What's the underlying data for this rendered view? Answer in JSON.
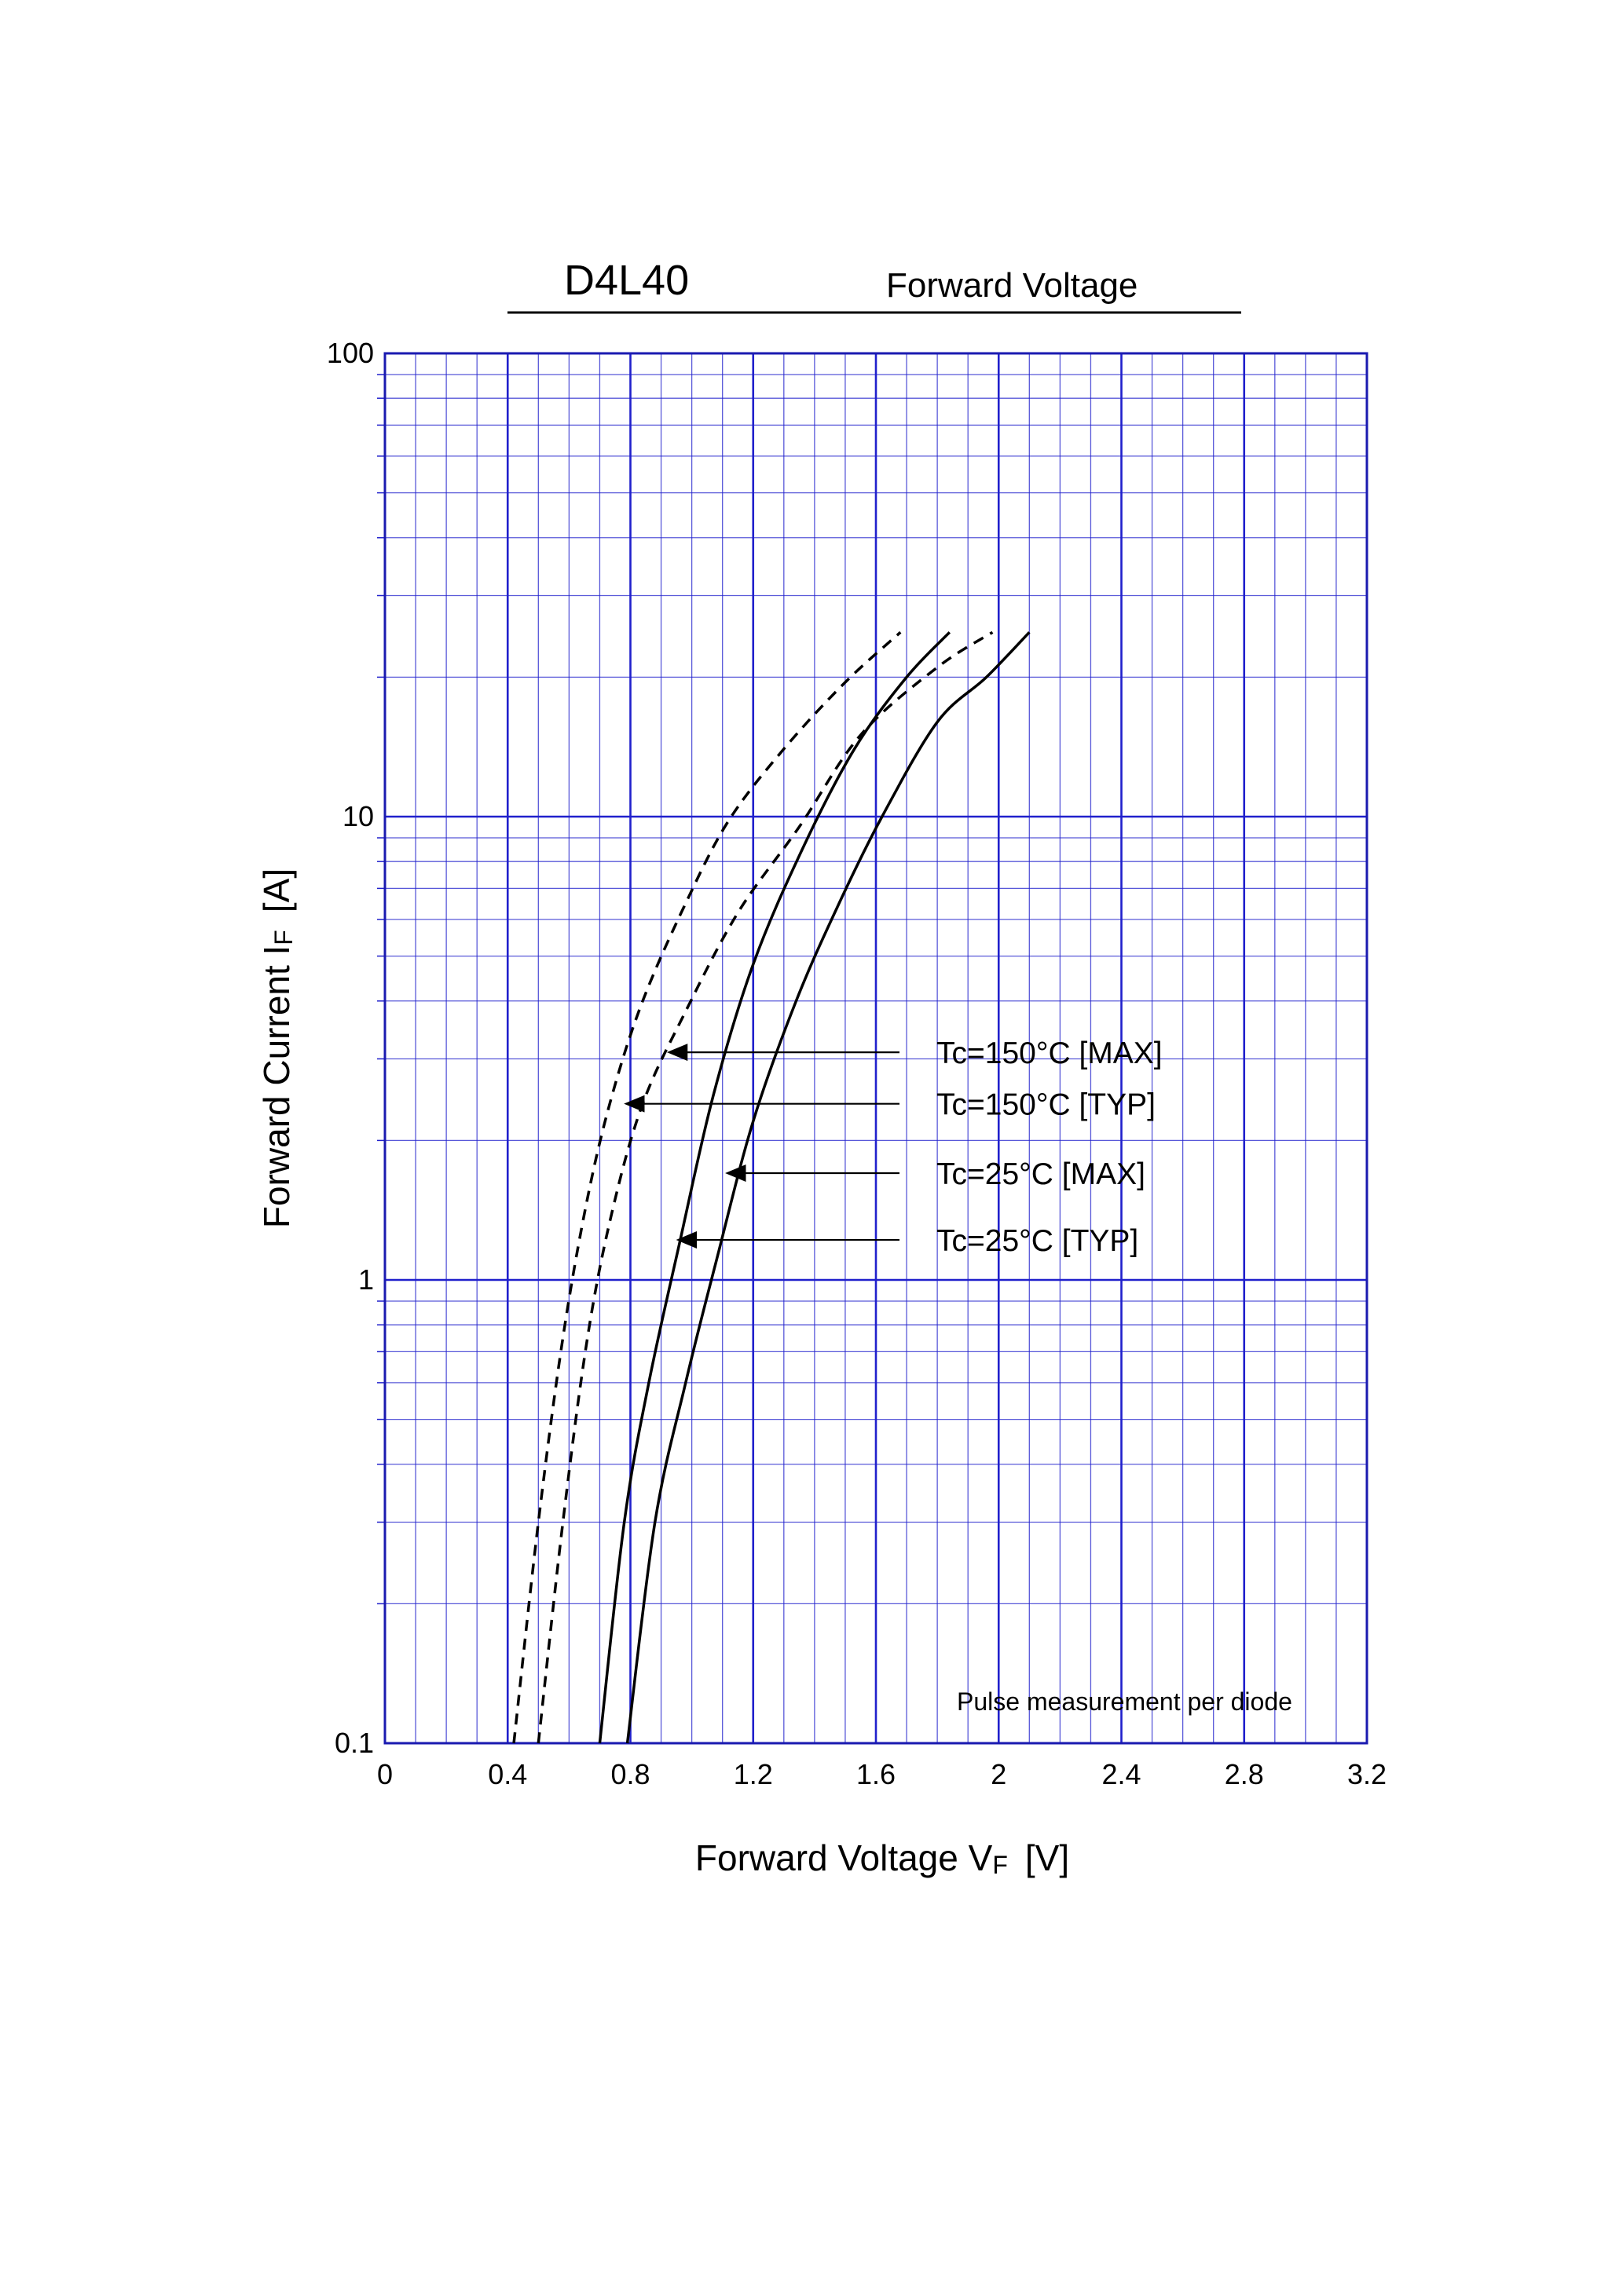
{
  "header": {
    "part_number": "D4L40",
    "title": "Forward  Voltage"
  },
  "chart_data": {
    "type": "line",
    "xlabel": "Forward Voltage  V",
    "xlabel_sub": "F",
    "xlabel_unit": "[V]",
    "ylabel": "Forward Current  I",
    "ylabel_sub": "F",
    "ylabel_unit": "[A]",
    "xlim": [
      0,
      3.2
    ],
    "ylim": [
      0.1,
      100
    ],
    "yscale": "log",
    "x_ticks": [
      "0",
      "0.4",
      "0.8",
      "1.2",
      "1.6",
      "2",
      "2.4",
      "2.8",
      "3.2"
    ],
    "y_ticks": [
      "0.1",
      "1",
      "10",
      "100"
    ],
    "grid": true,
    "note": "Pulse  measurement  per  diode",
    "series": [
      {
        "name": "Tc=150°C [MAX]",
        "style": "dashed",
        "x": [
          0.42,
          0.5,
          0.58,
          0.66,
          0.74,
          0.84,
          0.98,
          1.12,
          1.3,
          1.5,
          1.68
        ],
        "y": [
          0.1,
          0.3,
          0.75,
          1.5,
          2.5,
          4.0,
          6.5,
          9.8,
          14.0,
          19.5,
          25.0
        ]
      },
      {
        "name": "Tc=150°C [TYP]",
        "style": "dashed",
        "x": [
          0.5,
          0.58,
          0.66,
          0.74,
          0.84,
          0.98,
          1.15,
          1.35,
          1.55,
          1.8,
          1.98
        ],
        "y": [
          0.1,
          0.3,
          0.75,
          1.4,
          2.4,
          3.8,
          6.2,
          9.5,
          15.0,
          21.0,
          25.0
        ]
      },
      {
        "name": "Tc=25°C [MAX]",
        "style": "solid",
        "x": [
          0.7,
          0.78,
          0.86,
          0.96,
          1.07,
          1.2,
          1.36,
          1.53,
          1.7,
          1.84
        ],
        "y": [
          0.1,
          0.3,
          0.6,
          1.2,
          2.5,
          4.8,
          8.5,
          14.0,
          20.0,
          25.0
        ]
      },
      {
        "name": "Tc=25°C [TYP]",
        "style": "solid",
        "x": [
          0.79,
          0.88,
          0.98,
          1.08,
          1.2,
          1.34,
          1.48,
          1.62,
          1.8,
          1.96,
          2.1
        ],
        "y": [
          0.1,
          0.3,
          0.6,
          1.1,
          2.2,
          4.0,
          6.5,
          10.0,
          16.0,
          20.0,
          25.0
        ]
      }
    ],
    "annotations": [
      {
        "label": "Tc=150°C [MAX]",
        "point_x": 0.93,
        "point_y": 3.1
      },
      {
        "label": "Tc=150°C [TYP]",
        "point_x": 0.79,
        "point_y": 2.4
      },
      {
        "label": "Tc=25°C [MAX]",
        "point_x": 1.12,
        "point_y": 1.7
      },
      {
        "label": "Tc=25°C [TYP]",
        "point_x": 0.96,
        "point_y": 1.22
      }
    ],
    "colors": {
      "grid": "#2020cc",
      "frame": "#1a1ab0",
      "curve": "#000000"
    }
  }
}
